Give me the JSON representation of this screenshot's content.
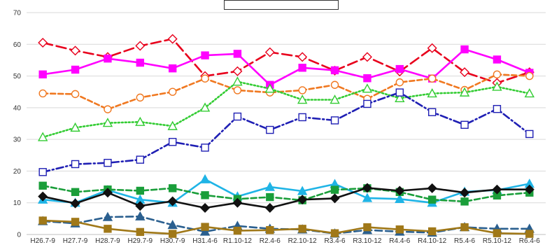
{
  "chart_data": {
    "type": "line",
    "title": "",
    "xlabel": "",
    "ylabel": "",
    "ylim": [
      0,
      70
    ],
    "yticks": [
      0,
      10,
      20,
      30,
      40,
      50,
      60,
      70
    ],
    "grid": true,
    "legend": "none",
    "categories": [
      "H26.7-9",
      "H27.7-9",
      "H28.7-9",
      "H29.7-9",
      "H30.7-9",
      "H31.4-6",
      "R1.10-12",
      "R2.4-6",
      "R2.10-12",
      "R3.4-6",
      "R3.10-12",
      "R4.4-6",
      "R4.10-12",
      "R5.4-6",
      "R5.10-12",
      "R6.4-6"
    ],
    "series": [
      {
        "color": "#e8001c",
        "dash": "14,6",
        "marker": "diamond",
        "values": [
          60.5,
          58,
          56,
          59.5,
          61.7,
          50,
          51.5,
          57.5,
          56,
          51.7,
          56,
          51.4,
          58.8,
          51.2,
          47.8,
          51.2
        ]
      },
      {
        "color": "#ff00ff",
        "dash": "",
        "marker": "square-filled",
        "values": [
          50.5,
          52,
          55.5,
          54.2,
          52.4,
          56.5,
          57,
          47.2,
          52.6,
          51.8,
          49.3,
          52.2,
          49.2,
          58.4,
          55.2,
          51
        ]
      },
      {
        "color": "#f07820",
        "dash": "7,4",
        "marker": "circle",
        "values": [
          44.5,
          44.3,
          39.5,
          43.2,
          45,
          49.2,
          45.5,
          44.8,
          45.5,
          47.2,
          42.8,
          48,
          49.2,
          45.6,
          50.5,
          50
        ]
      },
      {
        "color": "#33cc33",
        "dash": "2,3",
        "marker": "triangle",
        "values": [
          30.7,
          33.7,
          35.2,
          35.5,
          34.2,
          40,
          48.2,
          46,
          42.5,
          42.5,
          46,
          43,
          44.5,
          44.8,
          46.6,
          44.5
        ]
      },
      {
        "color": "#1f1fb4",
        "dash": "10,4,2,4",
        "marker": "square",
        "values": [
          19.7,
          22.2,
          22.6,
          23.6,
          29.2,
          27.4,
          37.2,
          33,
          37,
          36,
          41.2,
          44.8,
          38.6,
          34.6,
          39.6,
          31.7
        ]
      },
      {
        "color": "#1fb4e6",
        "dash": "",
        "marker": "triangle-filled",
        "values": [
          11,
          10,
          14,
          11,
          10,
          17.4,
          12,
          15,
          13.7,
          15.9,
          11.5,
          11.2,
          10,
          13.5,
          14,
          16
        ]
      },
      {
        "color": "#1a9e3a",
        "dash": "8,4",
        "marker": "square-filled",
        "values": [
          15.4,
          13.4,
          14.2,
          13.8,
          14.6,
          12.4,
          11.2,
          11.8,
          10.8,
          14.1,
          14.6,
          13.4,
          11,
          10.4,
          12.3,
          13.2
        ]
      },
      {
        "color": "#111111",
        "dash": "",
        "marker": "diamond-filled",
        "values": [
          12,
          9.8,
          13.2,
          9,
          10.5,
          8.4,
          10,
          8.4,
          11,
          11.4,
          14.7,
          13.8,
          14.6,
          13.2,
          14.2,
          14.2
        ]
      },
      {
        "color": "#2a5f8f",
        "dash": "10,5",
        "marker": "triangle-filled",
        "values": [
          4.2,
          3.5,
          5.5,
          5.7,
          3,
          0.9,
          2.7,
          1.8,
          1.6,
          0.3,
          1.4,
          0.9,
          0.6,
          2.3,
          1.8,
          1.8
        ]
      },
      {
        "color": "#a07818",
        "dash": "",
        "marker": "square-filled",
        "values": [
          4.4,
          4,
          1.8,
          0.8,
          0.2,
          2.4,
          1.2,
          1.4,
          1.8,
          0.4,
          2.3,
          1.6,
          1,
          2.3,
          0.4,
          0.2
        ]
      }
    ]
  }
}
